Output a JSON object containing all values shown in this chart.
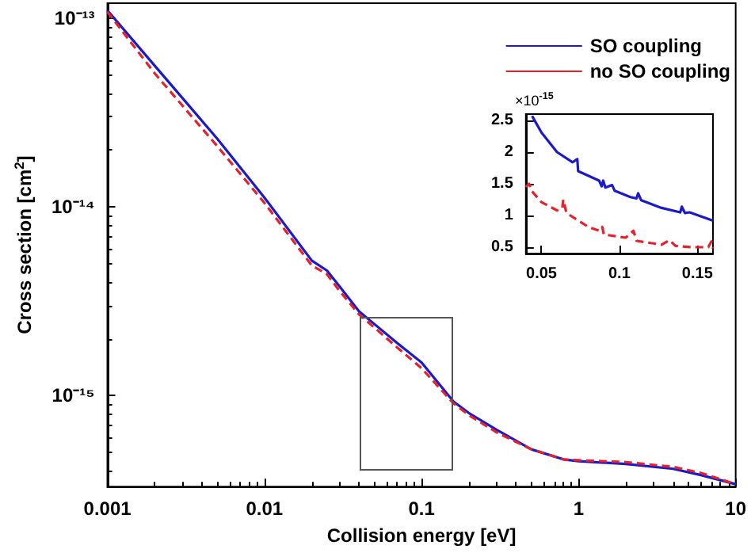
{
  "chart_data": [
    {
      "type": "line",
      "xlabel": "Collision energy [eV]",
      "ylabel": "Cross section [cm$^{2}$]",
      "log": "xy",
      "grid": false,
      "legend": "top right",
      "marker": "none",
      "xlim": [
        0.001,
        10
      ],
      "ylim": [
        3.3e-16,
        1.2e-13
      ],
      "xticks": [
        0.001,
        0.01,
        0.1,
        1,
        10
      ],
      "yticks": [
        {
          "value": 1e-15,
          "label": "10⁻¹⁵"
        },
        {
          "value": 1e-14,
          "label": "10⁻¹⁴"
        },
        {
          "value": 1e-13,
          "label": "10⁻¹³"
        }
      ],
      "series": [
        {
          "name": "SO coupling",
          "color": "#1a1acc",
          "line_style": "solid",
          "x": [
            0.001,
            0.002,
            0.005,
            0.01,
            0.02,
            0.025,
            0.03,
            0.04,
            0.05,
            0.07,
            0.1,
            0.16,
            0.2,
            0.3,
            0.5,
            0.8,
            1,
            2,
            4,
            6,
            10
          ],
          "values": [
            1.1e-13,
            5.6e-14,
            2.3e-14,
            1.12e-14,
            5.2e-15,
            4.6e-15,
            3.8e-15,
            2.8e-15,
            2.4e-15,
            1.9e-15,
            1.5e-15,
            9.3e-16,
            8.1e-16,
            6.6e-16,
            5.2e-16,
            4.6e-16,
            4.5e-16,
            4.35e-16,
            4.1e-16,
            3.8e-16,
            3.4e-16
          ]
        },
        {
          "name": "no SO coupling",
          "color": "#e8202a",
          "line_style": "dashed",
          "x": [
            0.001,
            0.002,
            0.005,
            0.01,
            0.02,
            0.025,
            0.03,
            0.04,
            0.05,
            0.07,
            0.1,
            0.16,
            0.2,
            0.3,
            0.5,
            0.8,
            1,
            2,
            4,
            6,
            10
          ],
          "values": [
            1.08e-13,
            5.1e-14,
            2.1e-14,
            1.05e-14,
            4.9e-15,
            4.4e-15,
            3.6e-15,
            2.7e-15,
            2.3e-15,
            1.8e-15,
            1.4e-15,
            9.1e-16,
            7.9e-16,
            6.4e-16,
            5.2e-16,
            4.6e-16,
            4.55e-16,
            4.45e-16,
            4.2e-16,
            3.9e-16,
            3.4e-16
          ]
        }
      ]
    },
    {
      "type": "line",
      "grid": false,
      "marker": "none",
      "annotations": [
        "×10$^{-15}$"
      ],
      "xlim": [
        0.04,
        0.16
      ],
      "ylim": [
        0.4,
        2.6
      ],
      "xticks": [
        0.05,
        0.1,
        0.15
      ],
      "yticks": [
        0.5,
        1,
        1.5,
        2,
        2.5
      ],
      "series": [
        {
          "color": "#1a1acc",
          "line_style": "solid",
          "x": [
            0.044,
            0.05,
            0.06,
            0.07,
            0.073,
            0.0735,
            0.087,
            0.0886,
            0.0896,
            0.091,
            0.0953,
            0.097,
            0.107,
            0.111,
            0.112,
            0.114,
            0.127,
            0.139,
            0.14,
            0.142,
            0.145,
            0.16
          ],
          "values": [
            2.57,
            2.31,
            2.0,
            1.84,
            1.89,
            1.7,
            1.55,
            1.46,
            1.55,
            1.44,
            1.48,
            1.39,
            1.29,
            1.27,
            1.35,
            1.24,
            1.12,
            1.05,
            1.14,
            1.04,
            1.05,
            0.92
          ]
        },
        {
          "color": "#e8202a",
          "line_style": "dashed",
          "x": [
            0.04,
            0.042,
            0.044,
            0.05,
            0.06,
            0.0634,
            0.064,
            0.066,
            0.08,
            0.087,
            0.089,
            0.09,
            0.104,
            0.109,
            0.111,
            0.127,
            0.132,
            0.136,
            0.147,
            0.157,
            0.159,
            0.16
          ],
          "values": [
            1.45,
            1.5,
            1.38,
            1.21,
            1.08,
            1.12,
            1.25,
            1.04,
            0.82,
            0.76,
            0.82,
            0.7,
            0.65,
            0.76,
            0.6,
            0.54,
            0.61,
            0.52,
            0.5,
            0.5,
            0.59,
            0.48
          ]
        }
      ]
    }
  ]
}
